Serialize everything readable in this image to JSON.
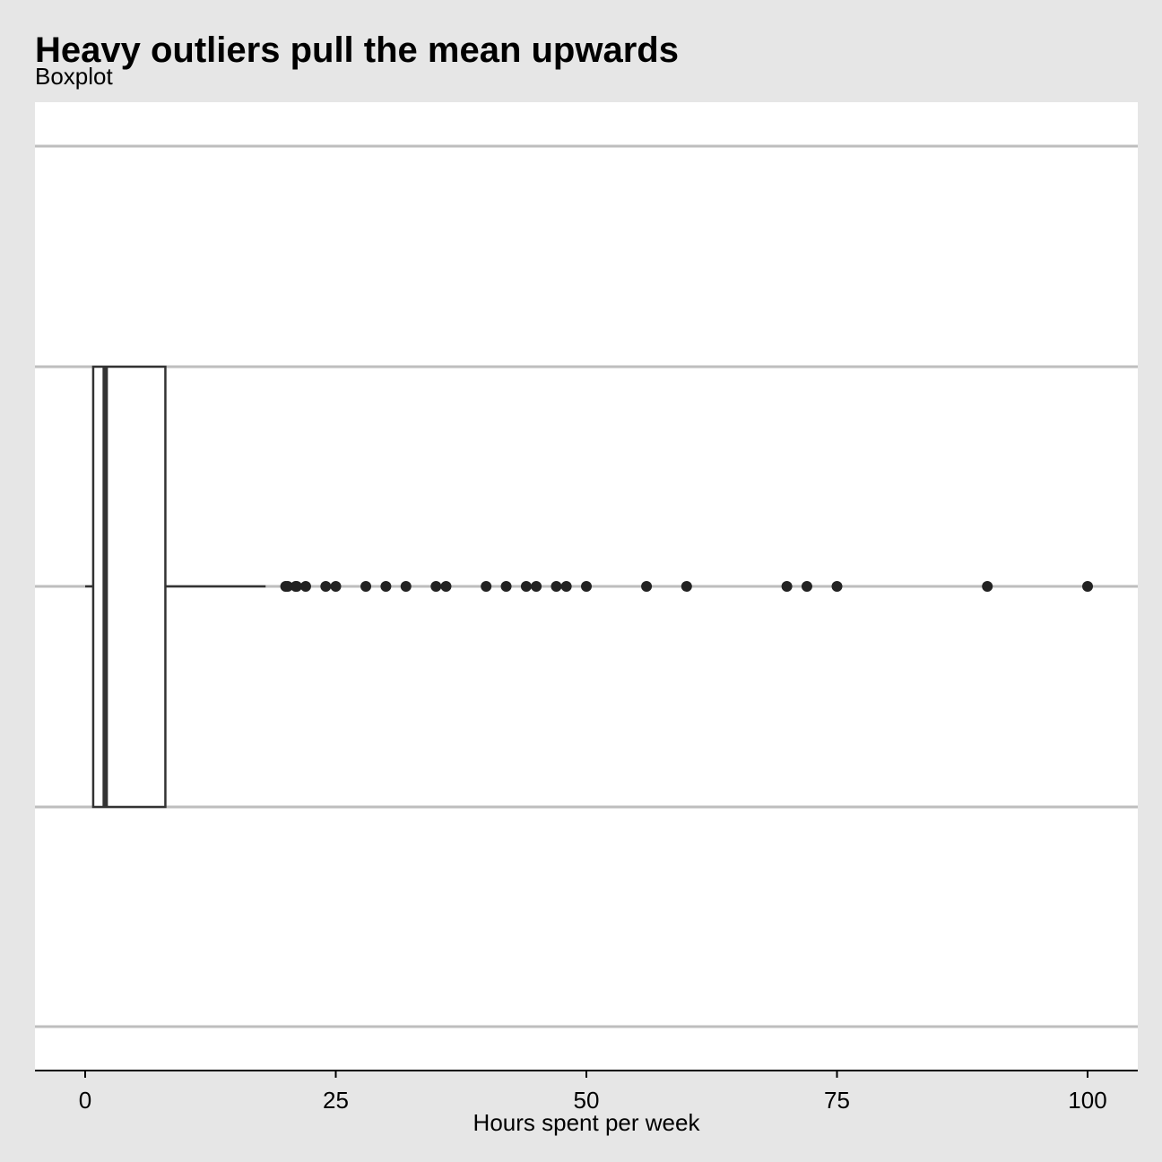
{
  "chart_data": {
    "type": "boxplot",
    "title": "Heavy outliers pull the mean upwards",
    "subtitle": "Boxplot",
    "xlabel": "Hours spent per week",
    "ylabel": "",
    "xlim": [
      -5,
      105
    ],
    "x_ticks": [
      0,
      25,
      50,
      75,
      100
    ],
    "x_tick_labels": [
      "0",
      "25",
      "50",
      "75",
      "100"
    ],
    "grid": "horizontal",
    "legend": "none",
    "box": {
      "whisker_low": 0,
      "q1": 0.8,
      "median": 2,
      "q3": 8,
      "whisker_high": 18
    },
    "outliers": [
      20,
      20.2,
      21,
      21.1,
      22,
      24,
      25,
      28,
      30,
      32,
      35,
      36,
      40,
      42,
      44,
      45,
      47,
      48,
      50,
      56,
      60,
      70,
      72,
      75,
      90,
      100
    ],
    "colors": {
      "background": "#e6e6e6",
      "panel": "#ffffff",
      "grid": "#bebebe",
      "box_line": "#333333",
      "box_fill": "#ffffff",
      "point": "#222222",
      "axis": "#000000"
    }
  }
}
